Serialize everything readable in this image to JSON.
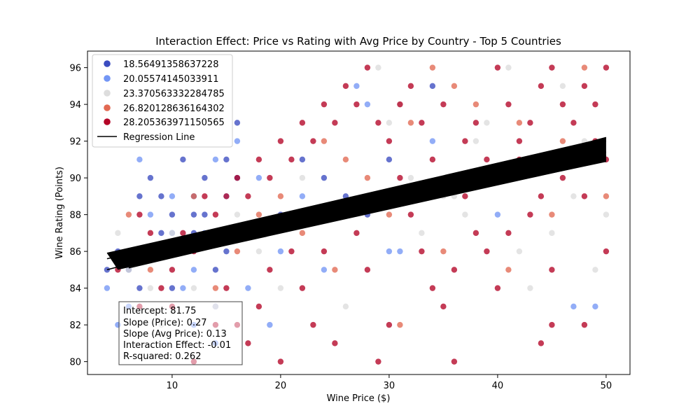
{
  "chart_data": {
    "type": "scatter",
    "title": "Interaction Effect: Price vs Rating with Avg Price by Country - Top 5 Countries",
    "xlabel": "Wine Price ($)",
    "ylabel": "Wine Rating (Points)",
    "xlim": [
      2.2,
      52.2
    ],
    "ylim": [
      79.3,
      96.9
    ],
    "x_ticks": [
      10,
      20,
      30,
      40,
      50
    ],
    "y_ticks": [
      80,
      82,
      84,
      86,
      88,
      90,
      92,
      94,
      96
    ],
    "grid": false,
    "legend_position": "top-left",
    "series": [
      {
        "name": "18.56491358637228",
        "color": "#3b4cc0",
        "points": [
          [
            4,
            85
          ],
          [
            5,
            86
          ],
          [
            6,
            85
          ],
          [
            7,
            84
          ],
          [
            8,
            86
          ],
          [
            9,
            87
          ],
          [
            10,
            88
          ],
          [
            11,
            86
          ],
          [
            12,
            89
          ],
          [
            13,
            90
          ],
          [
            14,
            85
          ],
          [
            15,
            91
          ],
          [
            16,
            93
          ],
          [
            8,
            90
          ],
          [
            10,
            84
          ],
          [
            12,
            87
          ],
          [
            14,
            83
          ],
          [
            9,
            89
          ],
          [
            11,
            91
          ],
          [
            13,
            88
          ],
          [
            15,
            86
          ],
          [
            16,
            90
          ],
          [
            7,
            89
          ],
          [
            18,
            87
          ],
          [
            20,
            88
          ],
          [
            22,
            91
          ],
          [
            24,
            90
          ],
          [
            26,
            89
          ],
          [
            28,
            88
          ],
          [
            30,
            91
          ],
          [
            34,
            95
          ],
          [
            15,
            87
          ],
          [
            10,
            86
          ],
          [
            12,
            88
          ]
        ]
      },
      {
        "name": "20.05574145033911",
        "color": "#7396f5",
        "points": [
          [
            4,
            84
          ],
          [
            5,
            82
          ],
          [
            6,
            83
          ],
          [
            7,
            91
          ],
          [
            8,
            88
          ],
          [
            9,
            86
          ],
          [
            10,
            89
          ],
          [
            11,
            84
          ],
          [
            12,
            85
          ],
          [
            13,
            87
          ],
          [
            14,
            91
          ],
          [
            15,
            89
          ],
          [
            16,
            92
          ],
          [
            18,
            90
          ],
          [
            20,
            86
          ],
          [
            22,
            89
          ],
          [
            24,
            85
          ],
          [
            26,
            88
          ],
          [
            28,
            94
          ],
          [
            30,
            86
          ],
          [
            31,
            86
          ],
          [
            34,
            92
          ],
          [
            40,
            88
          ],
          [
            47,
            83
          ],
          [
            49,
            83
          ],
          [
            27,
            95
          ],
          [
            10,
            87
          ],
          [
            12,
            82
          ],
          [
            14,
            81
          ],
          [
            17,
            84
          ],
          [
            19,
            82
          ]
        ]
      },
      {
        "name": "23.370563332284785",
        "color": "#dddddd",
        "points": [
          [
            5,
            87
          ],
          [
            6,
            85
          ],
          [
            8,
            84
          ],
          [
            9,
            82
          ],
          [
            10,
            87
          ],
          [
            11,
            86
          ],
          [
            12,
            84
          ],
          [
            14,
            83
          ],
          [
            16,
            88
          ],
          [
            18,
            86
          ],
          [
            20,
            84
          ],
          [
            22,
            90
          ],
          [
            25,
            88
          ],
          [
            28,
            89
          ],
          [
            30,
            93
          ],
          [
            32,
            90
          ],
          [
            35,
            89
          ],
          [
            38,
            92
          ],
          [
            41,
            96
          ],
          [
            44,
            91
          ],
          [
            46,
            95
          ],
          [
            48,
            92
          ],
          [
            50,
            88
          ],
          [
            29,
            96
          ],
          [
            31,
            94
          ],
          [
            36,
            89
          ],
          [
            39,
            93
          ],
          [
            42,
            86
          ],
          [
            45,
            87
          ],
          [
            47,
            89
          ],
          [
            49,
            85
          ],
          [
            33,
            87
          ],
          [
            37,
            88
          ],
          [
            43,
            84
          ],
          [
            26,
            83
          ]
        ]
      },
      {
        "name": "26.820128636164302",
        "color": "#e26952",
        "points": [
          [
            6,
            88
          ],
          [
            8,
            85
          ],
          [
            10,
            86
          ],
          [
            12,
            89
          ],
          [
            14,
            84
          ],
          [
            16,
            86
          ],
          [
            18,
            88
          ],
          [
            20,
            89
          ],
          [
            22,
            87
          ],
          [
            24,
            92
          ],
          [
            26,
            91
          ],
          [
            28,
            90
          ],
          [
            30,
            88
          ],
          [
            32,
            93
          ],
          [
            34,
            96
          ],
          [
            36,
            95
          ],
          [
            38,
            94
          ],
          [
            40,
            90
          ],
          [
            42,
            93
          ],
          [
            44,
            91
          ],
          [
            46,
            92
          ],
          [
            48,
            96
          ],
          [
            50,
            89
          ],
          [
            25,
            85
          ],
          [
            35,
            86
          ],
          [
            45,
            88
          ],
          [
            31,
            82
          ],
          [
            41,
            85
          ]
        ]
      },
      {
        "name": "28.205363971150565",
        "color": "#b40426",
        "points": [
          [
            5,
            85
          ],
          [
            6,
            86
          ],
          [
            7,
            88
          ],
          [
            8,
            87
          ],
          [
            9,
            86
          ],
          [
            10,
            85
          ],
          [
            11,
            87
          ],
          [
            12,
            86
          ],
          [
            13,
            89
          ],
          [
            14,
            88
          ],
          [
            15,
            89
          ],
          [
            16,
            90
          ],
          [
            17,
            89
          ],
          [
            18,
            91
          ],
          [
            19,
            90
          ],
          [
            20,
            92
          ],
          [
            21,
            91
          ],
          [
            22,
            93
          ],
          [
            23,
            92
          ],
          [
            24,
            94
          ],
          [
            25,
            93
          ],
          [
            26,
            95
          ],
          [
            27,
            94
          ],
          [
            28,
            96
          ],
          [
            29,
            93
          ],
          [
            30,
            92
          ],
          [
            31,
            94
          ],
          [
            32,
            95
          ],
          [
            33,
            93
          ],
          [
            34,
            91
          ],
          [
            35,
            94
          ],
          [
            36,
            90
          ],
          [
            37,
            92
          ],
          [
            38,
            93
          ],
          [
            39,
            91
          ],
          [
            40,
            96
          ],
          [
            41,
            94
          ],
          [
            42,
            92
          ],
          [
            43,
            93
          ],
          [
            44,
            95
          ],
          [
            45,
            96
          ],
          [
            46,
            94
          ],
          [
            47,
            93
          ],
          [
            48,
            95
          ],
          [
            49,
            94
          ],
          [
            50,
            96
          ],
          [
            20,
            80
          ],
          [
            25,
            81
          ],
          [
            30,
            82
          ],
          [
            35,
            83
          ],
          [
            40,
            84
          ],
          [
            45,
            85
          ],
          [
            50,
            86
          ],
          [
            18,
            83
          ],
          [
            22,
            84
          ],
          [
            28,
            85
          ],
          [
            33,
            86
          ],
          [
            38,
            87
          ],
          [
            43,
            88
          ],
          [
            48,
            89
          ],
          [
            16,
            82
          ],
          [
            24,
            86
          ],
          [
            32,
            88
          ],
          [
            44,
            89
          ],
          [
            50,
            91
          ],
          [
            19,
            85
          ],
          [
            27,
            87
          ],
          [
            36,
            85
          ],
          [
            41,
            87
          ],
          [
            46,
            90
          ],
          [
            49,
            92
          ],
          [
            21,
            86
          ],
          [
            26,
            88
          ],
          [
            31,
            90
          ],
          [
            37,
            89
          ],
          [
            42,
            91
          ],
          [
            47,
            91
          ],
          [
            15,
            84
          ],
          [
            23,
            82
          ],
          [
            34,
            84
          ],
          [
            39,
            86
          ],
          [
            45,
            82
          ],
          [
            17,
            81
          ],
          [
            29,
            80
          ],
          [
            36,
            80
          ],
          [
            44,
            81
          ],
          [
            48,
            82
          ],
          [
            12,
            80
          ],
          [
            14,
            82
          ],
          [
            10,
            83
          ],
          [
            7,
            83
          ],
          [
            9,
            84
          ]
        ]
      }
    ],
    "regression_line": {
      "name": "Regression Line",
      "color": "#000000",
      "bands": [
        {
          "x": [
            4,
            50
          ],
          "y": [
            85.0,
            92.2
          ]
        },
        {
          "x": [
            4,
            50
          ],
          "y": [
            85.9,
            92.0
          ]
        },
        {
          "x": [
            4,
            50
          ],
          "y": [
            85.6,
            91.4
          ]
        },
        {
          "x": [
            5,
            50
          ],
          "y": [
            85.3,
            90.9
          ]
        },
        {
          "x": [
            6,
            50
          ],
          "y": [
            85.1,
            91.2
          ]
        }
      ]
    },
    "stats_box": {
      "lines": [
        "Intercept: 81.75",
        "Slope (Price): 0.27",
        "Slope (Avg Price): 0.13",
        "Interaction Effect: -0.01",
        "R-squared: 0.262"
      ]
    }
  }
}
